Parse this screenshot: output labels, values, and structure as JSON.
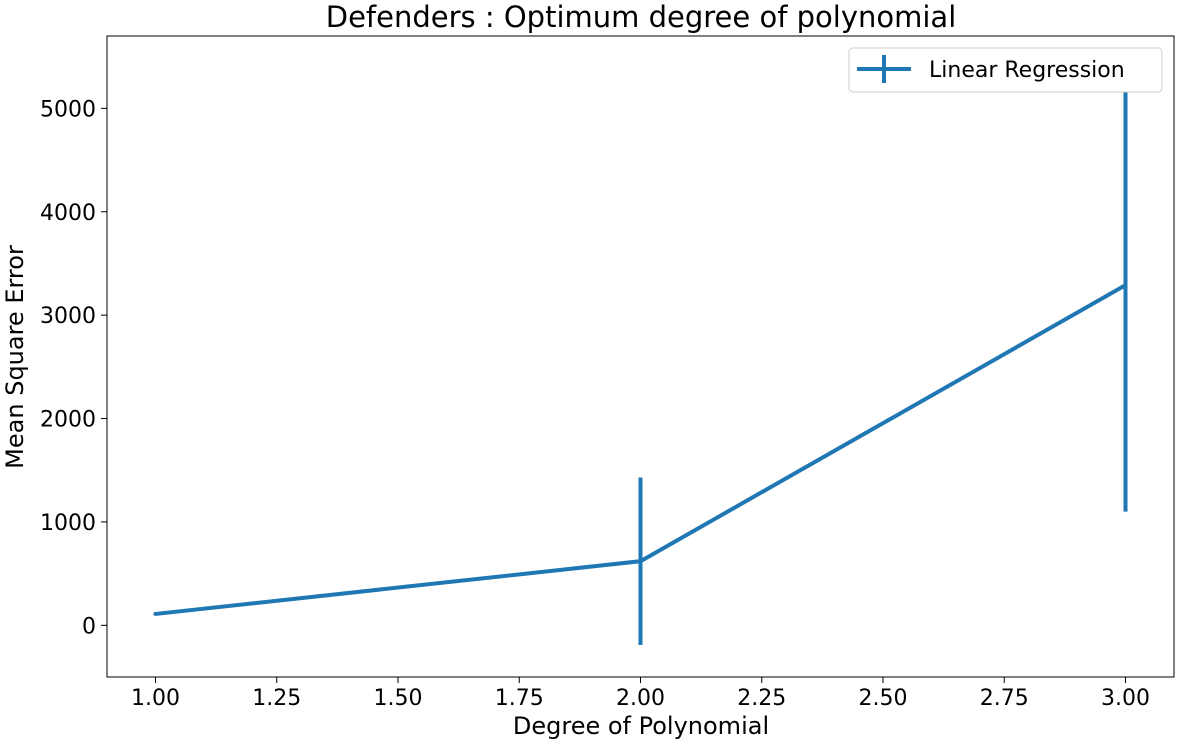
{
  "chart_data": {
    "type": "line",
    "title": "Defenders : Optimum degree of polynomial",
    "xlabel": "Degree of Polynomial",
    "ylabel": "Mean Square Error",
    "xlim": [
      0.9,
      3.1
    ],
    "ylim": [
      -500,
      5700
    ],
    "x_ticks": [
      1.0,
      1.25,
      1.5,
      1.75,
      2.0,
      2.25,
      2.5,
      2.75,
      3.0
    ],
    "x_tick_labels": [
      "1.00",
      "1.25",
      "1.50",
      "1.75",
      "2.00",
      "2.25",
      "2.50",
      "2.75",
      "3.00"
    ],
    "y_ticks": [
      0,
      1000,
      2000,
      3000,
      4000,
      5000
    ],
    "y_tick_labels": [
      "0",
      "1000",
      "2000",
      "3000",
      "4000",
      "5000"
    ],
    "grid": false,
    "legend_position": "top-right",
    "series": [
      {
        "name": "Linear Regression",
        "color": "#1f77b4",
        "x": [
          1,
          2,
          3
        ],
        "y": [
          110,
          620,
          3290
        ],
        "yerr": [
          10,
          810,
          2190
        ]
      }
    ]
  }
}
